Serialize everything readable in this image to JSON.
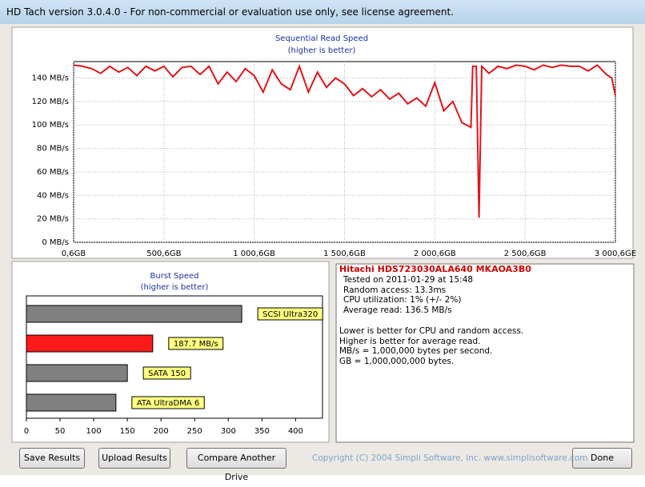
{
  "window_title": "HD Tach version 3.0.4.0  - For non-commercial or evaluation use only, see license agreement.",
  "read_chart": {
    "type": "line",
    "title": "Sequential Read Speed",
    "subtitle": "(higher is better)",
    "color": "#e0151b",
    "x": [
      0.6,
      50.6,
      100.6,
      150.6,
      200.6,
      250.6,
      300.6,
      350.6,
      400.6,
      450.6,
      500.6,
      550.6,
      600.6,
      650.6,
      700.6,
      750.6,
      800.6,
      850.6,
      900.6,
      950.6,
      1000.6,
      1050.6,
      1100.6,
      1150.6,
      1200.6,
      1250.6,
      1300.6,
      1350.6,
      1400.6,
      1450.6,
      1500.6,
      1550.6,
      1600.6,
      1650.6,
      1700.6,
      1750.6,
      1800.6,
      1850.6,
      1900.6,
      1950.6,
      2000.6,
      2050.6,
      2100.6,
      2150.6,
      2200.6,
      2210.6,
      2230.6,
      2245.6,
      2260.6,
      2300.6,
      2350.6,
      2400.6,
      2450.6,
      2500.6,
      2550.6,
      2600.6,
      2650.6,
      2700.6,
      2750.6,
      2800.6,
      2850.6,
      2900.6,
      2950.6,
      2980.6,
      3000.6
    ],
    "values": [
      151,
      150,
      148,
      144,
      150,
      145,
      149,
      142,
      150,
      146,
      150,
      141,
      149,
      150,
      143,
      150,
      135,
      145,
      137,
      148,
      142,
      128,
      147,
      135,
      130,
      150,
      128,
      145,
      132,
      140,
      135,
      125,
      131,
      124,
      130,
      122,
      127,
      118,
      123,
      116,
      136,
      112,
      120,
      102,
      98,
      150,
      150,
      21,
      150,
      144,
      150,
      148,
      151,
      150,
      147,
      151,
      149,
      151,
      150,
      150,
      146,
      151,
      143,
      140,
      125
    ],
    "xlim": [
      0.6,
      3000.6
    ],
    "xticks": [
      {
        "value": 0.6,
        "label": "0,6GB"
      },
      {
        "value": 500.6,
        "label": "500,6GB"
      },
      {
        "value": 1000.6,
        "label": "1 000,6GB"
      },
      {
        "value": 1500.6,
        "label": "1 500,6GB"
      },
      {
        "value": 2000.6,
        "label": "2 000,6GB"
      },
      {
        "value": 2500.6,
        "label": "2 500,6GB"
      },
      {
        "value": 3000.6,
        "label": "3 000,6GE"
      }
    ],
    "ylim": [
      0,
      154
    ],
    "yticks": [
      {
        "value": 0,
        "label": "0 MB/s"
      },
      {
        "value": 20,
        "label": "20 MB/s"
      },
      {
        "value": 40,
        "label": "40 MB/s"
      },
      {
        "value": 60,
        "label": "60 MB/s"
      },
      {
        "value": 80,
        "label": "80 MB/s"
      },
      {
        "value": 100,
        "label": "100 MB/s"
      },
      {
        "value": 120,
        "label": "120 MB/s"
      },
      {
        "value": 140,
        "label": "140 MB/s"
      }
    ],
    "grid": true
  },
  "burst_chart": {
    "type": "bar",
    "title": "Burst Speed",
    "subtitle": "(higher is better)",
    "bars": [
      {
        "name": "SCSI Ultra320",
        "value": 320,
        "color": "#808080"
      },
      {
        "value": 187.7,
        "value_label": "187.7 MB/s",
        "color": "#ff1a1a"
      },
      {
        "name": "SATA 150",
        "value": 150,
        "color": "#808080"
      },
      {
        "name": "ATA UltraDMA 6",
        "value": 133,
        "color": "#808080"
      }
    ],
    "xlim": [
      0,
      440
    ],
    "xticks": [
      0,
      50,
      100,
      150,
      200,
      250,
      300,
      350,
      400
    ]
  },
  "info": {
    "drive": "Hitachi HDS723030ALA640 MKAOA3B0",
    "stats": [
      "Tested on 2011-01-29 at 15:48",
      "Random access: 13.3ms",
      "CPU utilization: 1% (+/- 2%)",
      "Average read: 136.5 MB/s"
    ],
    "notes": [
      "Lower is better for CPU and random access.",
      "Higher is better for average read.",
      "MB/s = 1,000,000 bytes per second.",
      "GB = 1,000,000,000 bytes."
    ]
  },
  "buttons": [
    "Save Results",
    "Upload Results",
    "Compare Another Drive",
    "Done"
  ],
  "copyright": "Copyright (C) 2004 Simpli Software, Inc. www.simplisoftware.com"
}
